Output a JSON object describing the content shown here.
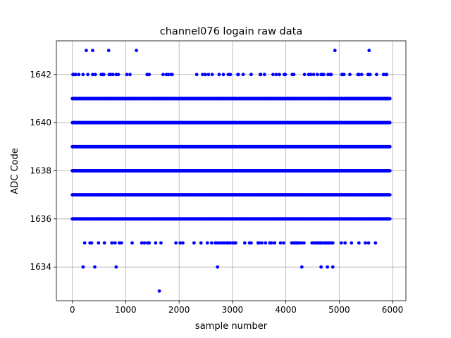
{
  "chart_data": {
    "type": "scatter",
    "title": "channel076 logain raw data",
    "xlabel": "sample number",
    "ylabel": "ADC Code",
    "xlim": [
      -300,
      6250
    ],
    "ylim": [
      1632.6,
      1643.4
    ],
    "xticks": [
      0,
      1000,
      2000,
      3000,
      4000,
      5000,
      6000
    ],
    "yticks": [
      1634,
      1636,
      1638,
      1640,
      1642
    ],
    "grid": true,
    "marker_color": "#0000ff",
    "x_range_of_samples": [
      0,
      5950
    ],
    "dense_levels": [
      1636,
      1637,
      1638,
      1639,
      1640,
      1641
    ],
    "sparse_levels": [
      {
        "y": 1642,
        "x": [
          10,
          30,
          60,
          120,
          200,
          290,
          380,
          430,
          540,
          570,
          590,
          690,
          720,
          760,
          820,
          860,
          1020,
          1080,
          1400,
          1440,
          1700,
          1760,
          1800,
          1850,
          1870,
          2330,
          2440,
          2490,
          2550,
          2620,
          2750,
          2830,
          2920,
          2960,
          3100,
          3110,
          3200,
          3350,
          3520,
          3530,
          3600,
          3760,
          3820,
          3880,
          3970,
          3990,
          4120,
          4150,
          4350,
          4430,
          4470,
          4520,
          4590,
          4660,
          4690,
          4710,
          4790,
          4830,
          4850,
          5050,
          5060,
          5090,
          5200,
          5350,
          5370,
          5420,
          5540,
          5550,
          5580,
          5700,
          5830,
          5870,
          5890
        ]
      },
      {
        "y": 1643,
        "x": [
          260,
          380,
          680,
          1200,
          4920,
          5560
        ]
      },
      {
        "y": 1635,
        "x": [
          230,
          330,
          360,
          490,
          600,
          740,
          800,
          880,
          920,
          1120,
          1300,
          1350,
          1410,
          1440,
          1560,
          1660,
          1940,
          2020,
          2070,
          2280,
          2410,
          2530,
          2610,
          2680,
          2710,
          2760,
          2810,
          2850,
          2900,
          2920,
          2960,
          3010,
          3040,
          3060,
          3230,
          3320,
          3350,
          3480,
          3500,
          3550,
          3620,
          3700,
          3730,
          3790,
          3900,
          3960,
          4110,
          4150,
          4170,
          4200,
          4220,
          4250,
          4290,
          4340,
          4490,
          4530,
          4560,
          4590,
          4620,
          4640,
          4660,
          4690,
          4730,
          4750,
          4780,
          4810,
          4850,
          4880,
          5040,
          5110,
          5230,
          5370,
          5490,
          5550,
          5680
        ]
      },
      {
        "y": 1634,
        "x": [
          200,
          420,
          820,
          2720,
          4300,
          4660,
          4780,
          4880
        ]
      },
      {
        "y": 1633,
        "x": [
          1630
        ]
      }
    ]
  }
}
